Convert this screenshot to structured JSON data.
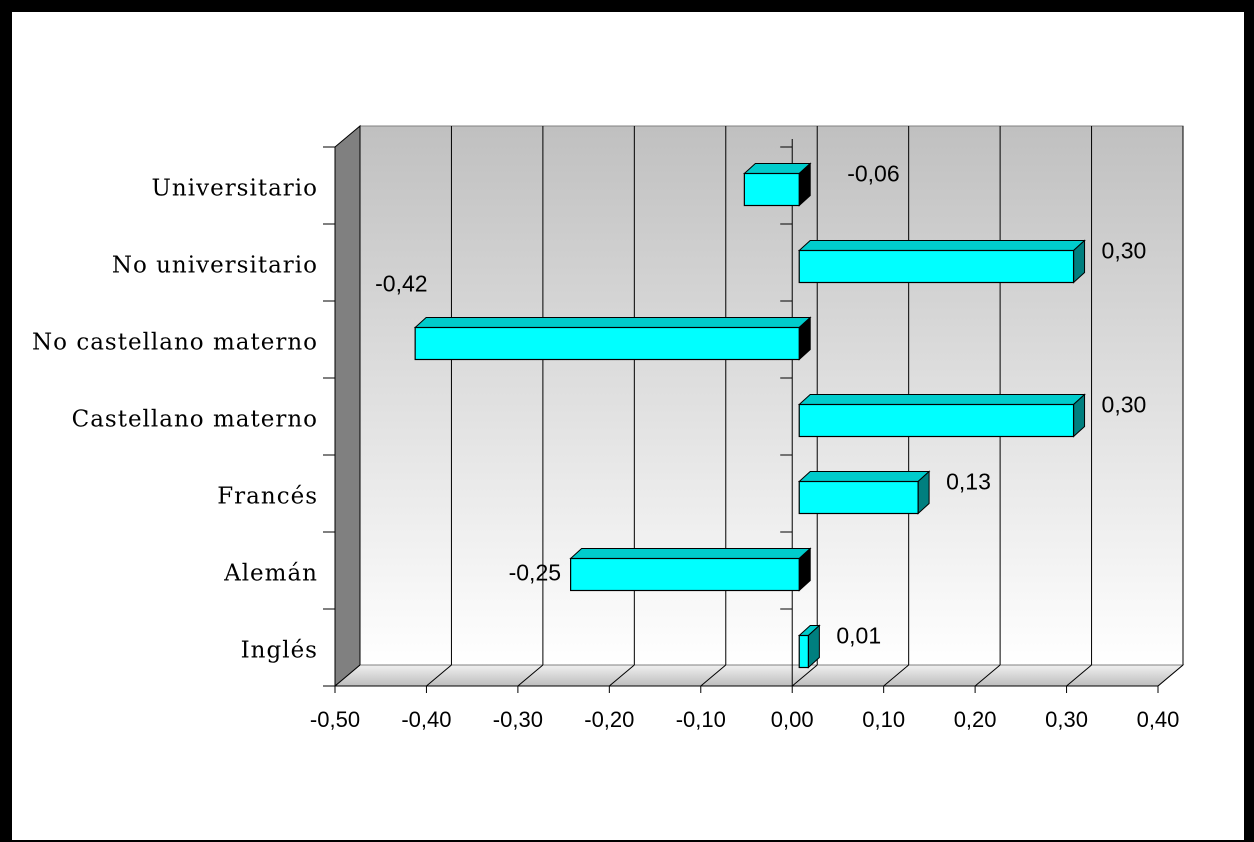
{
  "chart_data": {
    "type": "bar",
    "orientation": "horizontal",
    "style": "3d",
    "categories": [
      "Universitario",
      "No universitario",
      "No castellano materno",
      "Castellano materno",
      "Francés",
      "Alemán",
      "Inglés"
    ],
    "values": [
      -0.06,
      0.3,
      -0.42,
      0.3,
      0.13,
      -0.25,
      0.01
    ],
    "data_labels": [
      "-0,06",
      "0,30",
      "-0,42",
      "0,30",
      "0,13",
      "-0,25",
      "0,01"
    ],
    "xlim": [
      -0.5,
      0.4
    ],
    "x_ticks": [
      -0.5,
      -0.4,
      -0.3,
      -0.2,
      -0.1,
      0.0,
      0.1,
      0.2,
      0.3,
      0.4
    ],
    "x_tick_labels": [
      "-0,50",
      "-0,40",
      "-0,30",
      "-0,20",
      "-0,10",
      "0,00",
      "0,10",
      "0,20",
      "0,30",
      "0,40"
    ],
    "grid": true,
    "legend": "none",
    "title": "",
    "xlabel": "",
    "ylabel": "",
    "colors": {
      "bar_front": "#00ffff",
      "bar_top": "#00cccc",
      "bar_side": "#007f7f",
      "bar_end_dark": "#000000",
      "wall_top": "#c0c0c0",
      "wall_bottom": "#ffffff",
      "side_wall": "#808080",
      "floor": "#d9d9d9"
    }
  }
}
